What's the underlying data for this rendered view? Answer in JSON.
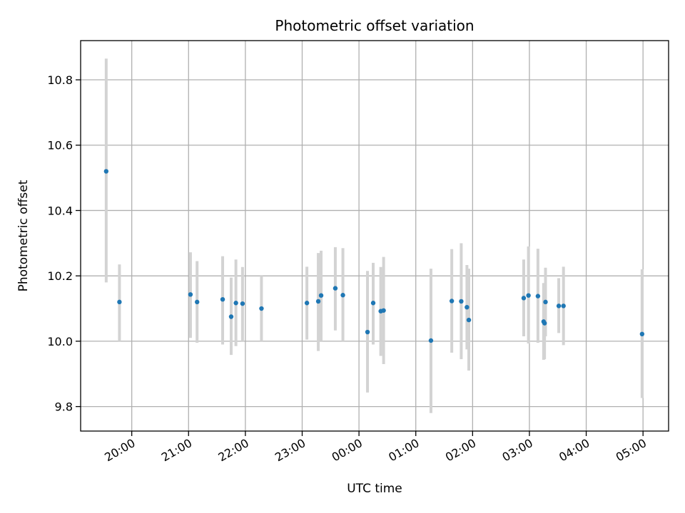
{
  "chart_data": {
    "type": "scatter",
    "title": "Photometric offset variation",
    "xlabel": "UTC time",
    "ylabel": "Photometric offset",
    "xlim": [
      "19:06",
      "05:27"
    ],
    "ylim": [
      9.725,
      10.92
    ],
    "x_ticks": [
      "20:00",
      "21:00",
      "22:00",
      "23:00",
      "00:00",
      "01:00",
      "02:00",
      "03:00",
      "04:00",
      "05:00"
    ],
    "y_ticks": [
      9.8,
      10.0,
      10.2,
      10.4,
      10.6,
      10.8
    ],
    "grid": true,
    "points": [
      {
        "x": "19:33",
        "y": 10.52,
        "yerr_low": 10.18,
        "yerr_high": 10.865
      },
      {
        "x": "19:47",
        "y": 10.12,
        "yerr_low": 10.0,
        "yerr_high": 10.235
      },
      {
        "x": "21:02",
        "y": 10.143,
        "yerr_low": 10.01,
        "yerr_high": 10.272
      },
      {
        "x": "21:09",
        "y": 10.12,
        "yerr_low": 9.995,
        "yerr_high": 10.245
      },
      {
        "x": "21:36",
        "y": 10.128,
        "yerr_low": 9.99,
        "yerr_high": 10.26
      },
      {
        "x": "21:45",
        "y": 10.075,
        "yerr_low": 9.958,
        "yerr_high": 10.195
      },
      {
        "x": "21:50",
        "y": 10.117,
        "yerr_low": 9.985,
        "yerr_high": 10.25
      },
      {
        "x": "21:57",
        "y": 10.115,
        "yerr_low": 10.0,
        "yerr_high": 10.227
      },
      {
        "x": "22:17",
        "y": 10.1,
        "yerr_low": 10.0,
        "yerr_high": 10.2
      },
      {
        "x": "23:05",
        "y": 10.117,
        "yerr_low": 10.005,
        "yerr_high": 10.228
      },
      {
        "x": "23:17",
        "y": 10.122,
        "yerr_low": 9.97,
        "yerr_high": 10.27
      },
      {
        "x": "23:20",
        "y": 10.14,
        "yerr_low": 10.0,
        "yerr_high": 10.277
      },
      {
        "x": "23:35",
        "y": 10.162,
        "yerr_low": 10.033,
        "yerr_high": 10.288
      },
      {
        "x": "23:43",
        "y": 10.141,
        "yerr_low": 10.0,
        "yerr_high": 10.285
      },
      {
        "x": "00:09",
        "y": 10.028,
        "yerr_low": 9.843,
        "yerr_high": 10.215
      },
      {
        "x": "00:15",
        "y": 10.117,
        "yerr_low": 9.99,
        "yerr_high": 10.24
      },
      {
        "x": "00:23",
        "y": 10.092,
        "yerr_low": 9.955,
        "yerr_high": 10.227
      },
      {
        "x": "00:26",
        "y": 10.094,
        "yerr_low": 9.93,
        "yerr_high": 10.258
      },
      {
        "x": "01:16",
        "y": 10.002,
        "yerr_low": 9.78,
        "yerr_high": 10.222
      },
      {
        "x": "01:38",
        "y": 10.123,
        "yerr_low": 9.965,
        "yerr_high": 10.282
      },
      {
        "x": "01:48",
        "y": 10.122,
        "yerr_low": 9.945,
        "yerr_high": 10.3
      },
      {
        "x": "01:54",
        "y": 10.104,
        "yerr_low": 9.975,
        "yerr_high": 10.233
      },
      {
        "x": "01:56",
        "y": 10.065,
        "yerr_low": 9.91,
        "yerr_high": 10.222
      },
      {
        "x": "02:54",
        "y": 10.132,
        "yerr_low": 10.015,
        "yerr_high": 10.25
      },
      {
        "x": "02:59",
        "y": 10.14,
        "yerr_low": 9.993,
        "yerr_high": 10.29
      },
      {
        "x": "03:09",
        "y": 10.138,
        "yerr_low": 9.995,
        "yerr_high": 10.283
      },
      {
        "x": "03:15",
        "y": 10.06,
        "yerr_low": 9.943,
        "yerr_high": 10.178
      },
      {
        "x": "03:16",
        "y": 10.055,
        "yerr_low": 9.945,
        "yerr_high": 10.165
      },
      {
        "x": "03:17",
        "y": 10.12,
        "yerr_low": 10.015,
        "yerr_high": 10.225
      },
      {
        "x": "03:31",
        "y": 10.108,
        "yerr_low": 10.025,
        "yerr_high": 10.193
      },
      {
        "x": "03:36",
        "y": 10.108,
        "yerr_low": 9.988,
        "yerr_high": 10.228
      },
      {
        "x": "04:59",
        "y": 10.022,
        "yerr_low": 9.826,
        "yerr_high": 10.22
      }
    ],
    "colors": {
      "points": "#1f77b4",
      "errorbars": "#d3d3d3",
      "grid": "#b0b0b0"
    }
  }
}
